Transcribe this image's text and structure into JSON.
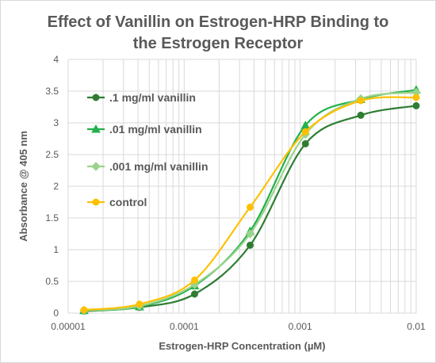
{
  "chart_data": {
    "type": "line",
    "title": "Effect of Vanillin on Estrogen-HRP Binding to the Estrogen Receptor",
    "title_lines": [
      "Effect of Vanillin on Estrogen-HRP Binding to",
      "the Estrogen Receptor"
    ],
    "xlabel": "Estrogen-HRP Concentration (µM)",
    "ylabel": "Absorbance @ 405 nm",
    "x_scale": "log",
    "xlim": [
      1e-05,
      0.01
    ],
    "ylim": [
      0,
      4
    ],
    "x_tick_labels": [
      "0.00001",
      "0.0001",
      "0.001",
      "0.01"
    ],
    "y_tick_labels": [
      "0",
      "0.5",
      "1",
      "1.5",
      "2",
      "2.5",
      "3",
      "3.5",
      "4"
    ],
    "grid": "log minor vertical and major horizontal",
    "legend_position": "left, inside plot",
    "series": [
      {
        "name": ".1 mg/ml vanillin",
        "color": "#2e7d32",
        "marker": "circle",
        "points": [
          {
            "x": 1.37e-05,
            "y": 0.03
          },
          {
            "x": 4.12e-05,
            "y": 0.09
          },
          {
            "x": 0.000123,
            "y": 0.3
          },
          {
            "x": 0.00037,
            "y": 1.07
          },
          {
            "x": 0.00111,
            "y": 2.67
          },
          {
            "x": 0.00333,
            "y": 3.12
          },
          {
            "x": 0.01,
            "y": 3.27
          }
        ]
      },
      {
        "name": ".01 mg/ml vanillin",
        "color": "#22b14c",
        "marker": "triangle",
        "points": [
          {
            "x": 1.37e-05,
            "y": 0.04
          },
          {
            "x": 4.12e-05,
            "y": 0.1
          },
          {
            "x": 0.000123,
            "y": 0.43
          },
          {
            "x": 0.00037,
            "y": 1.29
          },
          {
            "x": 0.00111,
            "y": 2.96
          },
          {
            "x": 0.00333,
            "y": 3.37
          },
          {
            "x": 0.01,
            "y": 3.52
          }
        ]
      },
      {
        "name": ".001 mg/ml vanillin",
        "color": "#9bd38a",
        "marker": "diamond",
        "points": [
          {
            "x": 1.37e-05,
            "y": 0.04
          },
          {
            "x": 4.12e-05,
            "y": 0.11
          },
          {
            "x": 0.000123,
            "y": 0.45
          },
          {
            "x": 0.00037,
            "y": 1.25
          },
          {
            "x": 0.00111,
            "y": 2.82
          },
          {
            "x": 0.00333,
            "y": 3.38
          },
          {
            "x": 0.01,
            "y": 3.48
          }
        ]
      },
      {
        "name": "control",
        "color": "#ffc000",
        "marker": "circle",
        "points": [
          {
            "x": 1.37e-05,
            "y": 0.05
          },
          {
            "x": 4.12e-05,
            "y": 0.14
          },
          {
            "x": 0.000123,
            "y": 0.52
          },
          {
            "x": 0.00037,
            "y": 1.67
          },
          {
            "x": 0.00111,
            "y": 2.86
          },
          {
            "x": 0.00333,
            "y": 3.35
          },
          {
            "x": 0.01,
            "y": 3.4
          }
        ]
      }
    ]
  },
  "colors": {
    "grid": "#d9d9d9",
    "text": "#595959",
    "background": "#ffffff"
  }
}
